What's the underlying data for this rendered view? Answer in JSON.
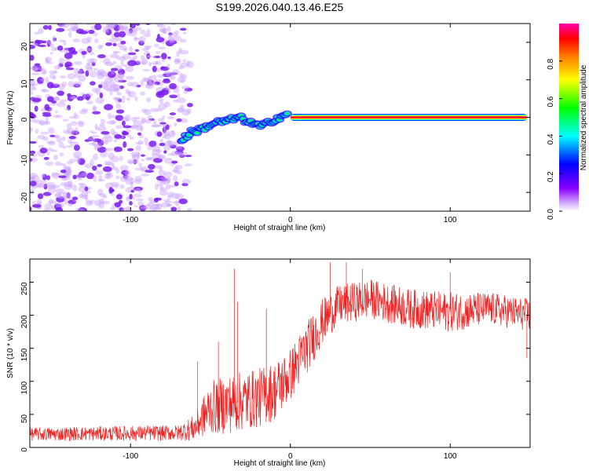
{
  "title": "S199.2026.040.13.46.E25",
  "colors": {
    "snr_line": "#ee2222",
    "colormap": [
      "#ffffff",
      "#8b00ff",
      "#0000ff",
      "#00ffff",
      "#00ff00",
      "#ffff00",
      "#ff8000",
      "#ff0000",
      "#ff00ff"
    ]
  },
  "chart_data": [
    {
      "id": "spectrogram",
      "type": "heatmap",
      "title": "S199.2026.040.13.46.E25",
      "xlabel": "Height of straight line (km)",
      "ylabel": "Frequency (Hz)",
      "xlim": [
        -163,
        150
      ],
      "ylim": [
        -25,
        25
      ],
      "x_ticks": [
        -100,
        0,
        100
      ],
      "y_ticks": [
        -20,
        -10,
        0,
        10,
        20
      ],
      "colorbar": {
        "label": "Normalized spectral amplitude",
        "range": [
          0,
          1
        ],
        "ticks": [
          0.0,
          0.2,
          0.4,
          0.6,
          0.8
        ]
      },
      "noise_region": {
        "x_range": [
          -163,
          -68
        ],
        "amplitude": "0.1-0.3"
      },
      "ridge": [
        {
          "x": -68,
          "f": -6,
          "amp": 0.5
        },
        {
          "x": -62,
          "f": -4,
          "amp": 0.55
        },
        {
          "x": -55,
          "f": -3,
          "amp": 0.5
        },
        {
          "x": -48,
          "f": -1.5,
          "amp": 0.5
        },
        {
          "x": -40,
          "f": -1,
          "amp": 0.55
        },
        {
          "x": -32,
          "f": 0,
          "amp": 0.5
        },
        {
          "x": -25,
          "f": -1.5,
          "amp": 0.55
        },
        {
          "x": -18,
          "f": -2.5,
          "amp": 0.5
        },
        {
          "x": -12,
          "f": -1,
          "amp": 0.55
        },
        {
          "x": -5,
          "f": 0.5,
          "amp": 0.6
        },
        {
          "x": 0,
          "f": 1,
          "amp": 0.85
        },
        {
          "x": 10,
          "f": 1,
          "amp": 0.9
        },
        {
          "x": 18,
          "f": 0.5,
          "amp": 0.9
        },
        {
          "x": 25,
          "f": 0,
          "amp": 0.95
        },
        {
          "x": 150,
          "f": 0,
          "amp": 0.95
        }
      ]
    },
    {
      "id": "snr",
      "type": "line",
      "xlabel": "Height of straight line (km)",
      "ylabel": "SNR (10 * v/v)",
      "xlim": [
        -163,
        150
      ],
      "ylim": [
        0,
        285
      ],
      "x_ticks": [
        -100,
        0,
        100
      ],
      "y_ticks": [
        0,
        50,
        100,
        150,
        200,
        250
      ],
      "trend": [
        {
          "x": -163,
          "y": 20,
          "noise": 10
        },
        {
          "x": -70,
          "y": 22,
          "noise": 12
        },
        {
          "x": -60,
          "y": 30,
          "noise": 20
        },
        {
          "x": -50,
          "y": 60,
          "noise": 40
        },
        {
          "x": -40,
          "y": 65,
          "noise": 45
        },
        {
          "x": -30,
          "y": 70,
          "noise": 45
        },
        {
          "x": -20,
          "y": 75,
          "noise": 45
        },
        {
          "x": -10,
          "y": 85,
          "noise": 45
        },
        {
          "x": 0,
          "y": 110,
          "noise": 40
        },
        {
          "x": 10,
          "y": 150,
          "noise": 40
        },
        {
          "x": 20,
          "y": 190,
          "noise": 35
        },
        {
          "x": 30,
          "y": 215,
          "noise": 30
        },
        {
          "x": 50,
          "y": 225,
          "noise": 30
        },
        {
          "x": 75,
          "y": 210,
          "noise": 30
        },
        {
          "x": 100,
          "y": 205,
          "noise": 30
        },
        {
          "x": 125,
          "y": 210,
          "noise": 25
        },
        {
          "x": 150,
          "y": 200,
          "noise": 25
        }
      ],
      "spikes": [
        {
          "x": -35,
          "y": 270
        },
        {
          "x": -33,
          "y": 220
        },
        {
          "x": -15,
          "y": 210
        },
        {
          "x": -58,
          "y": 130
        },
        {
          "x": -45,
          "y": 160
        },
        {
          "x": 25,
          "y": 280
        },
        {
          "x": 35,
          "y": 280
        },
        {
          "x": 45,
          "y": 270
        },
        {
          "x": 100,
          "y": 265
        },
        {
          "x": 148,
          "y": 135
        }
      ]
    }
  ]
}
